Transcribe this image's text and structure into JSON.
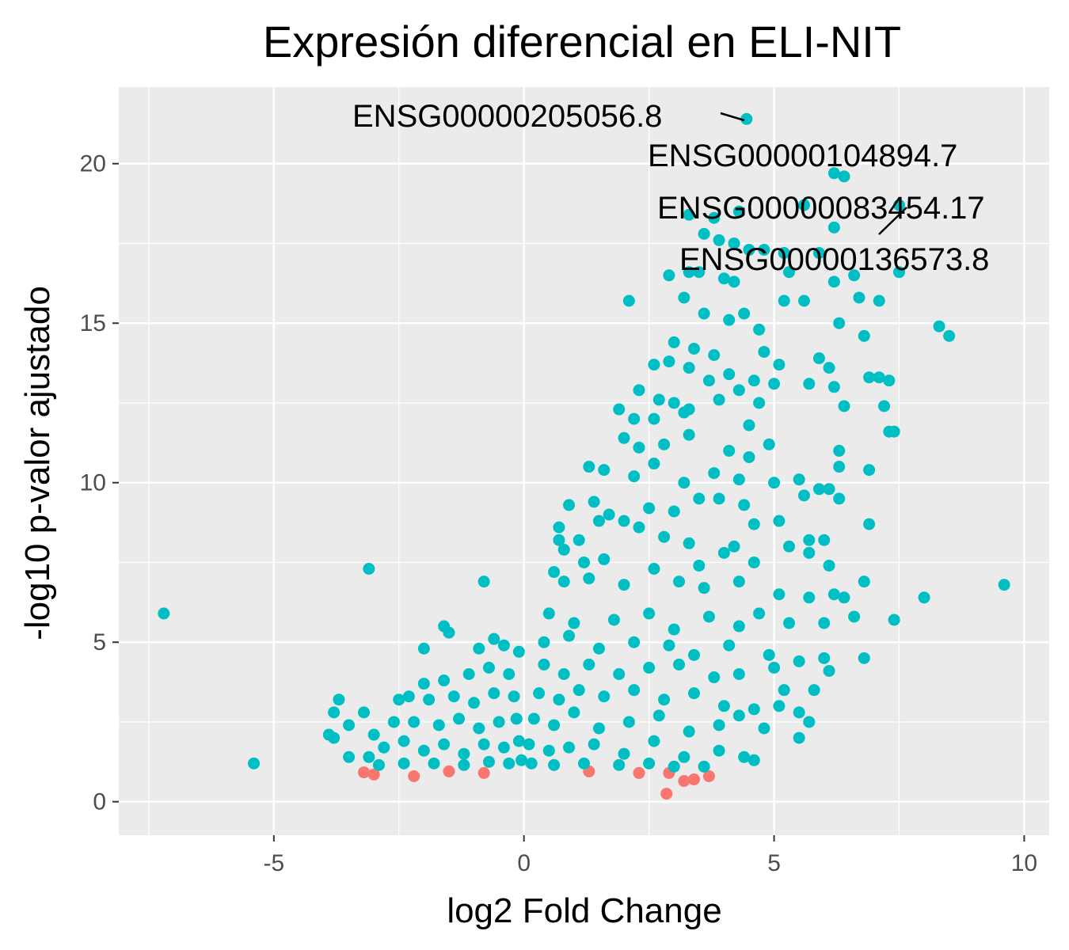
{
  "chart_data": {
    "type": "scatter",
    "title": "Expresión diferencial en ELI-NIT",
    "xlabel": "log2 Fold Change",
    "ylabel": "-log10 p-valor ajustado",
    "xlim": [
      -8.1,
      10.5
    ],
    "ylim": [
      -1.05,
      22.4
    ],
    "xticks": [
      -5,
      0,
      5,
      10
    ],
    "yticks": [
      0,
      5,
      10,
      15,
      20
    ],
    "xtick_labels": [
      "-5",
      "0",
      "5",
      "10"
    ],
    "ytick_labels": [
      "0",
      "5",
      "10",
      "15",
      "20"
    ],
    "grid": true,
    "legend": "none",
    "colors": {
      "panel": "#ebebeb",
      "grid": "#ffffff",
      "significant": "#00bfc4",
      "not_significant": "#f8766d"
    },
    "series": [
      {
        "color": "#f8766d",
        "points": [
          [
            2.85,
            0.25
          ],
          [
            3.7,
            0.8
          ],
          [
            3.4,
            0.7
          ],
          [
            3.2,
            0.65
          ],
          [
            -3.2,
            0.92
          ],
          [
            -3.0,
            0.85
          ],
          [
            2.9,
            0.9
          ],
          [
            -2.2,
            0.8
          ],
          [
            -1.5,
            0.95
          ],
          [
            1.3,
            0.95
          ],
          [
            2.3,
            0.9
          ],
          [
            -0.8,
            0.9
          ]
        ]
      },
      {
        "color": "#00bfc4",
        "points": [
          [
            4.45,
            21.4
          ],
          [
            6.2,
            19.7
          ],
          [
            6.4,
            19.6
          ],
          [
            7.5,
            18.7
          ],
          [
            5.6,
            18.7
          ],
          [
            3.3,
            18.4
          ],
          [
            3.8,
            18.3
          ],
          [
            4.3,
            18.5
          ],
          [
            6.2,
            18.0
          ],
          [
            3.6,
            17.8
          ],
          [
            3.9,
            17.6
          ],
          [
            4.2,
            17.5
          ],
          [
            4.5,
            17.3
          ],
          [
            4.8,
            17.3
          ],
          [
            5.2,
            17.2
          ],
          [
            5.9,
            17.2
          ],
          [
            7.5,
            16.6
          ],
          [
            5.3,
            16.6
          ],
          [
            2.9,
            16.5
          ],
          [
            3.3,
            16.6
          ],
          [
            3.5,
            16.6
          ],
          [
            4.0,
            16.4
          ],
          [
            4.2,
            16.3
          ],
          [
            6.6,
            16.5
          ],
          [
            6.2,
            16.3
          ],
          [
            2.1,
            15.7
          ],
          [
            5.2,
            15.7
          ],
          [
            5.6,
            15.7
          ],
          [
            6.7,
            15.8
          ],
          [
            7.1,
            15.7
          ],
          [
            3.2,
            15.8
          ],
          [
            3.6,
            15.3
          ],
          [
            4.1,
            15.1
          ],
          [
            4.4,
            15.3
          ],
          [
            6.3,
            15.0
          ],
          [
            8.3,
            14.9
          ],
          [
            8.5,
            14.6
          ],
          [
            6.8,
            14.6
          ],
          [
            3.0,
            14.4
          ],
          [
            3.4,
            14.2
          ],
          [
            3.8,
            14.0
          ],
          [
            4.7,
            14.8
          ],
          [
            4.8,
            14.1
          ],
          [
            5.1,
            13.7
          ],
          [
            5.9,
            13.9
          ],
          [
            6.1,
            13.6
          ],
          [
            2.6,
            13.7
          ],
          [
            2.9,
            13.8
          ],
          [
            3.3,
            13.6
          ],
          [
            3.7,
            13.2
          ],
          [
            4.1,
            13.4
          ],
          [
            4.6,
            13.2
          ],
          [
            5.7,
            13.1
          ],
          [
            6.2,
            13.0
          ],
          [
            6.9,
            13.3
          ],
          [
            7.1,
            13.3
          ],
          [
            7.3,
            13.2
          ],
          [
            2.3,
            12.9
          ],
          [
            2.7,
            12.6
          ],
          [
            3.0,
            12.5
          ],
          [
            3.3,
            12.3
          ],
          [
            3.9,
            12.6
          ],
          [
            4.3,
            12.9
          ],
          [
            4.7,
            12.5
          ],
          [
            5.0,
            13.1
          ],
          [
            6.4,
            12.4
          ],
          [
            7.2,
            12.4
          ],
          [
            1.9,
            12.3
          ],
          [
            2.2,
            12.0
          ],
          [
            2.6,
            12.0
          ],
          [
            3.2,
            12.2
          ],
          [
            4.5,
            11.8
          ],
          [
            7.3,
            11.6
          ],
          [
            7.4,
            11.6
          ],
          [
            2.0,
            11.4
          ],
          [
            2.3,
            11.1
          ],
          [
            2.8,
            11.2
          ],
          [
            3.3,
            11.5
          ],
          [
            4.1,
            11.0
          ],
          [
            4.5,
            10.8
          ],
          [
            4.9,
            11.2
          ],
          [
            6.3,
            11.0
          ],
          [
            1.3,
            10.5
          ],
          [
            1.6,
            10.4
          ],
          [
            2.2,
            10.2
          ],
          [
            2.6,
            10.6
          ],
          [
            3.2,
            10.0
          ],
          [
            3.8,
            10.3
          ],
          [
            4.3,
            10.1
          ],
          [
            5.0,
            10.0
          ],
          [
            5.5,
            10.1
          ],
          [
            5.9,
            9.8
          ],
          [
            6.1,
            9.8
          ],
          [
            6.3,
            10.5
          ],
          [
            6.9,
            10.4
          ],
          [
            0.9,
            9.3
          ],
          [
            1.4,
            9.4
          ],
          [
            1.7,
            9.0
          ],
          [
            2.0,
            8.8
          ],
          [
            2.5,
            9.2
          ],
          [
            3.0,
            9.1
          ],
          [
            3.5,
            9.5
          ],
          [
            3.9,
            9.5
          ],
          [
            4.4,
            9.3
          ],
          [
            5.6,
            9.6
          ],
          [
            6.3,
            9.5
          ],
          [
            0.7,
            8.6
          ],
          [
            1.1,
            8.2
          ],
          [
            1.5,
            8.8
          ],
          [
            2.3,
            8.6
          ],
          [
            2.8,
            8.3
          ],
          [
            3.3,
            8.1
          ],
          [
            4.2,
            8.0
          ],
          [
            4.6,
            8.7
          ],
          [
            5.1,
            8.8
          ],
          [
            5.7,
            8.2
          ],
          [
            6.0,
            8.2
          ],
          [
            6.9,
            8.7
          ],
          [
            0.7,
            8.2
          ],
          [
            0.8,
            7.9
          ],
          [
            1.2,
            7.5
          ],
          [
            1.6,
            7.6
          ],
          [
            2.6,
            7.3
          ],
          [
            3.5,
            7.4
          ],
          [
            4.0,
            7.8
          ],
          [
            4.6,
            7.5
          ],
          [
            5.3,
            8.0
          ],
          [
            5.7,
            7.8
          ],
          [
            6.1,
            7.4
          ],
          [
            0.6,
            7.2
          ],
          [
            0.8,
            6.9
          ],
          [
            1.3,
            7.0
          ],
          [
            2.0,
            6.8
          ],
          [
            3.1,
            6.9
          ],
          [
            3.6,
            6.7
          ],
          [
            4.3,
            6.9
          ],
          [
            5.1,
            6.5
          ],
          [
            5.7,
            6.4
          ],
          [
            6.2,
            6.5
          ],
          [
            6.4,
            6.4
          ],
          [
            6.8,
            6.9
          ],
          [
            8.0,
            6.4
          ],
          [
            9.6,
            6.8
          ],
          [
            -3.1,
            7.3
          ],
          [
            -0.8,
            6.9
          ],
          [
            -7.2,
            5.9
          ],
          [
            -5.4,
            1.2
          ],
          [
            0.5,
            5.9
          ],
          [
            1.0,
            5.6
          ],
          [
            1.8,
            5.7
          ],
          [
            2.5,
            5.9
          ],
          [
            3.0,
            5.4
          ],
          [
            3.7,
            5.8
          ],
          [
            4.3,
            5.5
          ],
          [
            4.7,
            5.9
          ],
          [
            5.3,
            5.6
          ],
          [
            6.0,
            5.6
          ],
          [
            6.6,
            5.8
          ],
          [
            7.4,
            5.7
          ],
          [
            0.4,
            5.0
          ],
          [
            0.9,
            5.2
          ],
          [
            1.5,
            4.8
          ],
          [
            2.2,
            5.0
          ],
          [
            2.9,
            4.9
          ],
          [
            3.4,
            4.6
          ],
          [
            4.1,
            4.9
          ],
          [
            4.9,
            4.6
          ],
          [
            5.5,
            4.4
          ],
          [
            6.0,
            4.5
          ],
          [
            6.1,
            4.1
          ],
          [
            6.8,
            4.5
          ],
          [
            0.4,
            4.3
          ],
          [
            0.8,
            4.0
          ],
          [
            1.3,
            4.3
          ],
          [
            1.9,
            4.0
          ],
          [
            2.5,
            4.2
          ],
          [
            3.1,
            4.3
          ],
          [
            3.8,
            3.9
          ],
          [
            4.3,
            4.0
          ],
          [
            5.0,
            4.2
          ],
          [
            5.2,
            3.5
          ],
          [
            5.8,
            3.5
          ],
          [
            0.3,
            3.4
          ],
          [
            0.7,
            3.2
          ],
          [
            1.1,
            3.5
          ],
          [
            1.6,
            3.3
          ],
          [
            2.2,
            3.5
          ],
          [
            2.8,
            3.2
          ],
          [
            3.4,
            3.4
          ],
          [
            4.0,
            3.0
          ],
          [
            4.6,
            2.9
          ],
          [
            5.1,
            3.0
          ],
          [
            5.5,
            2.8
          ],
          [
            5.7,
            2.5
          ],
          [
            0.2,
            2.6
          ],
          [
            0.6,
            2.4
          ],
          [
            1.0,
            2.8
          ],
          [
            1.5,
            2.3
          ],
          [
            2.1,
            2.5
          ],
          [
            2.7,
            2.7
          ],
          [
            3.3,
            2.2
          ],
          [
            3.9,
            2.4
          ],
          [
            4.3,
            2.7
          ],
          [
            4.8,
            2.3
          ],
          [
            5.5,
            2.0
          ],
          [
            0.1,
            1.8
          ],
          [
            0.5,
            1.6
          ],
          [
            0.9,
            1.7
          ],
          [
            1.4,
            1.8
          ],
          [
            2.0,
            1.5
          ],
          [
            2.6,
            1.9
          ],
          [
            3.2,
            1.4
          ],
          [
            3.9,
            1.6
          ],
          [
            4.4,
            1.4
          ],
          [
            4.6,
            1.3
          ],
          [
            0.15,
            1.2
          ],
          [
            0.6,
            1.15
          ],
          [
            1.2,
            1.2
          ],
          [
            1.9,
            1.15
          ],
          [
            2.5,
            1.2
          ],
          [
            3.0,
            1.1
          ],
          [
            3.6,
            1.1
          ],
          [
            -0.6,
            5.1
          ],
          [
            -0.4,
            4.9
          ],
          [
            -0.1,
            4.7
          ],
          [
            -0.9,
            4.8
          ],
          [
            -1.6,
            5.5
          ],
          [
            -1.5,
            5.3
          ],
          [
            -2.0,
            4.8
          ],
          [
            -0.3,
            4.0
          ],
          [
            -0.7,
            4.2
          ],
          [
            -1.1,
            4.0
          ],
          [
            -1.6,
            3.8
          ],
          [
            -2.0,
            3.7
          ],
          [
            -0.2,
            3.3
          ],
          [
            -0.6,
            3.4
          ],
          [
            -1.0,
            3.1
          ],
          [
            -1.4,
            3.3
          ],
          [
            -1.9,
            3.2
          ],
          [
            -2.3,
            3.3
          ],
          [
            -2.5,
            3.2
          ],
          [
            -0.15,
            2.6
          ],
          [
            -0.5,
            2.5
          ],
          [
            -0.9,
            2.3
          ],
          [
            -1.3,
            2.6
          ],
          [
            -1.7,
            2.4
          ],
          [
            -2.2,
            2.5
          ],
          [
            -2.6,
            2.5
          ],
          [
            -3.2,
            2.8
          ],
          [
            -3.7,
            3.2
          ],
          [
            -3.8,
            2.8
          ],
          [
            -3.9,
            2.1
          ],
          [
            -3.8,
            2.0
          ],
          [
            -3.5,
            2.4
          ],
          [
            -3.0,
            2.1
          ],
          [
            -2.8,
            1.7
          ],
          [
            -0.1,
            1.9
          ],
          [
            -0.4,
            1.7
          ],
          [
            -0.8,
            1.8
          ],
          [
            -1.2,
            1.5
          ],
          [
            -1.6,
            1.8
          ],
          [
            -2.0,
            1.6
          ],
          [
            -2.4,
            1.9
          ],
          [
            -3.1,
            1.4
          ],
          [
            -3.5,
            1.4
          ],
          [
            -0.05,
            1.3
          ],
          [
            -0.3,
            1.2
          ],
          [
            -0.7,
            1.25
          ],
          [
            -1.2,
            1.15
          ],
          [
            -1.8,
            1.2
          ],
          [
            -2.4,
            1.2
          ],
          [
            -2.9,
            1.15
          ]
        ]
      }
    ],
    "annotations": [
      {
        "text": "ENSG00000205056.8",
        "x": 4.45,
        "y": 21.4
      },
      {
        "text": "ENSG00000104894.7",
        "x": 6.2,
        "y": 19.7
      },
      {
        "text": "ENSG00000083454.17",
        "x": 7.5,
        "y": 18.7
      },
      {
        "text": "ENSG00000136573.8",
        "x": 6.4,
        "y": 19.6
      }
    ]
  }
}
